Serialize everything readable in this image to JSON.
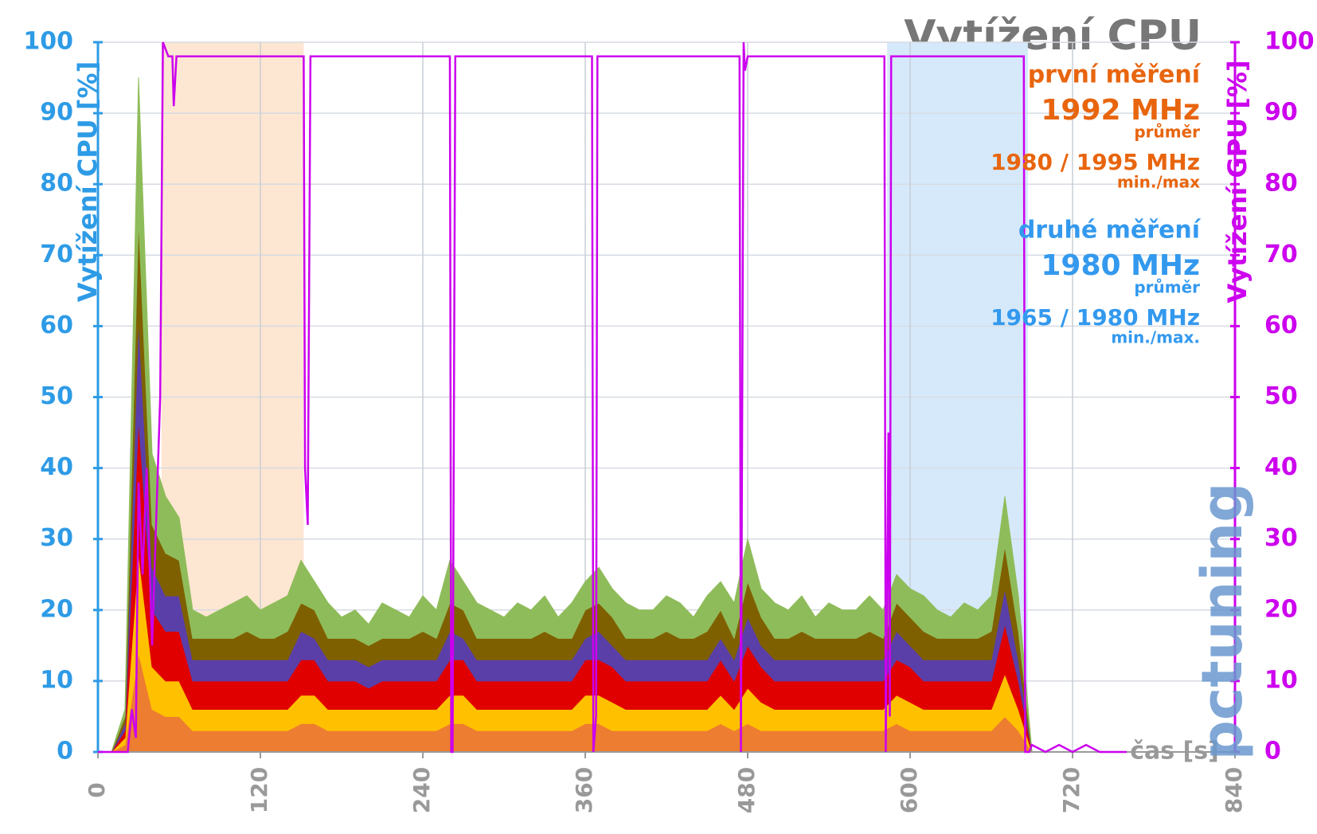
{
  "chart_data": {
    "type": "stacked-area",
    "title": "Vytížení CPU",
    "annotations": {
      "first": {
        "label": "první měření",
        "avg": "1992 MHz",
        "avg_note": "průměr",
        "range": "1980 / 1995 MHz",
        "range_note": "min./max",
        "color": "#e8650e"
      },
      "second": {
        "label": "druhé měření",
        "avg": "1980 MHz",
        "avg_note": "průměr",
        "range": "1965 / 1980 MHz",
        "range_note": "min./max.",
        "color": "#3399ee"
      }
    },
    "y_label": "Vytížení CPU [%]",
    "y2_label": "Vytížení GPU [%]",
    "x_label": "čas [s]",
    "logo": "pctuning",
    "xlim": [
      0,
      840
    ],
    "xticks": [
      0,
      120,
      240,
      360,
      480,
      600,
      720,
      840
    ],
    "ylim": [
      0,
      100
    ],
    "yticks": [
      0,
      10,
      20,
      30,
      40,
      50,
      60,
      70,
      80,
      90,
      100
    ],
    "y2lim": [
      0,
      100
    ],
    "y2ticks": [
      0,
      10,
      20,
      30,
      40,
      50,
      60,
      70,
      80,
      90,
      100
    ],
    "grid": true,
    "y_color": "#2e9be6",
    "y2_color": "#cc00ee",
    "bands": [
      {
        "range": [
          47,
          152
        ],
        "color": "#fde6d2"
      },
      {
        "range": [
          583,
          687
        ],
        "color": "#d6e9fb"
      }
    ],
    "x": [
      0,
      10,
      20,
      30,
      40,
      50,
      60,
      70,
      80,
      90,
      100,
      110,
      120,
      130,
      140,
      150,
      160,
      170,
      180,
      190,
      200,
      210,
      220,
      230,
      240,
      250,
      260,
      270,
      280,
      290,
      300,
      310,
      320,
      330,
      340,
      350,
      360,
      370,
      380,
      390,
      400,
      410,
      420,
      430,
      440,
      450,
      460,
      470,
      480,
      490,
      500,
      510,
      520,
      530,
      540,
      550,
      560,
      570,
      580,
      590,
      600,
      610,
      620,
      630,
      640,
      650,
      660,
      670,
      680,
      690,
      700,
      710,
      720,
      730,
      740
    ],
    "series": [
      {
        "color": "#ed7d31",
        "values": [
          0,
          0,
          1,
          14,
          6,
          5,
          5,
          3,
          3,
          3,
          3,
          3,
          3,
          3,
          3,
          4,
          4,
          3,
          3,
          3,
          3,
          3,
          3,
          3,
          3,
          3,
          4,
          4,
          3,
          3,
          3,
          3,
          3,
          3,
          3,
          3,
          4,
          4,
          3,
          3,
          3,
          3,
          3,
          3,
          3,
          3,
          4,
          3,
          4,
          3,
          3,
          3,
          3,
          3,
          3,
          3,
          3,
          3,
          3,
          4,
          3,
          3,
          3,
          3,
          3,
          3,
          3,
          5,
          3,
          0,
          0,
          0,
          0,
          0,
          0
        ]
      },
      {
        "color": "#ffc000",
        "values": [
          0,
          0,
          1,
          14,
          6,
          5,
          5,
          3,
          3,
          3,
          3,
          3,
          3,
          3,
          3,
          4,
          4,
          3,
          3,
          3,
          3,
          3,
          3,
          3,
          3,
          3,
          4,
          4,
          3,
          3,
          3,
          3,
          3,
          3,
          3,
          3,
          4,
          4,
          4,
          3,
          3,
          3,
          3,
          3,
          3,
          3,
          4,
          3,
          5,
          4,
          3,
          3,
          3,
          3,
          3,
          3,
          3,
          3,
          3,
          4,
          4,
          3,
          3,
          3,
          3,
          3,
          3,
          6,
          3,
          0,
          0,
          0,
          0,
          0,
          0
        ]
      },
      {
        "color": "#e00000",
        "values": [
          0,
          0,
          1,
          19,
          8,
          7,
          7,
          4,
          4,
          4,
          4,
          4,
          4,
          4,
          4,
          5,
          5,
          4,
          4,
          4,
          3,
          4,
          4,
          4,
          4,
          4,
          5,
          5,
          4,
          4,
          4,
          4,
          4,
          4,
          4,
          4,
          5,
          5,
          5,
          4,
          4,
          4,
          4,
          4,
          4,
          4,
          5,
          4,
          6,
          5,
          4,
          4,
          4,
          4,
          4,
          4,
          4,
          4,
          4,
          5,
          5,
          4,
          4,
          4,
          4,
          4,
          4,
          7,
          4,
          0,
          0,
          0,
          0,
          0,
          0
        ]
      },
      {
        "color": "#5b3fa8",
        "values": [
          0,
          0,
          1,
          14,
          6,
          5,
          5,
          3,
          3,
          3,
          3,
          3,
          3,
          3,
          3,
          4,
          3,
          3,
          3,
          3,
          3,
          3,
          3,
          3,
          3,
          3,
          4,
          3,
          3,
          3,
          3,
          3,
          3,
          3,
          3,
          3,
          3,
          4,
          3,
          3,
          3,
          3,
          3,
          3,
          3,
          3,
          3,
          3,
          4,
          3,
          3,
          3,
          3,
          3,
          3,
          3,
          3,
          3,
          3,
          4,
          3,
          3,
          3,
          3,
          3,
          3,
          3,
          5,
          3,
          0,
          0,
          0,
          0,
          0,
          0
        ]
      },
      {
        "color": "#7f6000",
        "values": [
          0,
          0,
          1,
          14,
          6,
          6,
          5,
          3,
          3,
          3,
          3,
          4,
          3,
          3,
          4,
          4,
          4,
          3,
          3,
          3,
          3,
          3,
          3,
          3,
          4,
          3,
          4,
          4,
          3,
          3,
          3,
          3,
          3,
          4,
          3,
          3,
          4,
          4,
          4,
          3,
          3,
          3,
          4,
          3,
          3,
          4,
          4,
          3,
          5,
          4,
          3,
          3,
          4,
          3,
          3,
          3,
          3,
          4,
          3,
          4,
          4,
          4,
          3,
          3,
          3,
          3,
          4,
          6,
          4,
          0,
          0,
          0,
          0,
          0,
          0
        ]
      },
      {
        "color": "#8fbc5a",
        "values": [
          0,
          0,
          1,
          20,
          10,
          8,
          6,
          4,
          3,
          4,
          5,
          5,
          4,
          5,
          5,
          6,
          4,
          5,
          3,
          4,
          3,
          5,
          4,
          3,
          5,
          4,
          6,
          4,
          5,
          4,
          3,
          5,
          4,
          5,
          3,
          5,
          4,
          5,
          4,
          5,
          4,
          4,
          5,
          5,
          3,
          5,
          4,
          5,
          6,
          4,
          5,
          4,
          5,
          3,
          5,
          4,
          4,
          5,
          4,
          4,
          4,
          5,
          4,
          3,
          5,
          4,
          5,
          7,
          5,
          0,
          0,
          0,
          0,
          0,
          0
        ]
      },
      {
        "color": "#cc00ee",
        "axis": "y2",
        "x": [
          0,
          22,
          25,
          28,
          30,
          33,
          36,
          40,
          46,
          48,
          52,
          55,
          56,
          58,
          60,
          152,
          153,
          155,
          157,
          158,
          260,
          261,
          262,
          264,
          265,
          365,
          366,
          368,
          369,
          474,
          475,
          477,
          478,
          480,
          581,
          582,
          584,
          585,
          586,
          684,
          685,
          688,
          690,
          700,
          710,
          720,
          730,
          740,
          760
        ],
        "values": [
          0,
          0,
          6,
          2,
          38,
          25,
          40,
          15,
          50,
          100,
          98,
          98,
          91,
          98,
          98,
          98,
          40,
          32,
          98,
          98,
          98,
          0,
          0,
          98,
          98,
          98,
          0,
          5,
          98,
          98,
          0,
          100,
          96,
          98,
          98,
          0,
          45,
          5,
          98,
          98,
          0,
          0,
          1,
          0,
          1,
          0,
          1,
          0,
          0
        ]
      }
    ]
  }
}
